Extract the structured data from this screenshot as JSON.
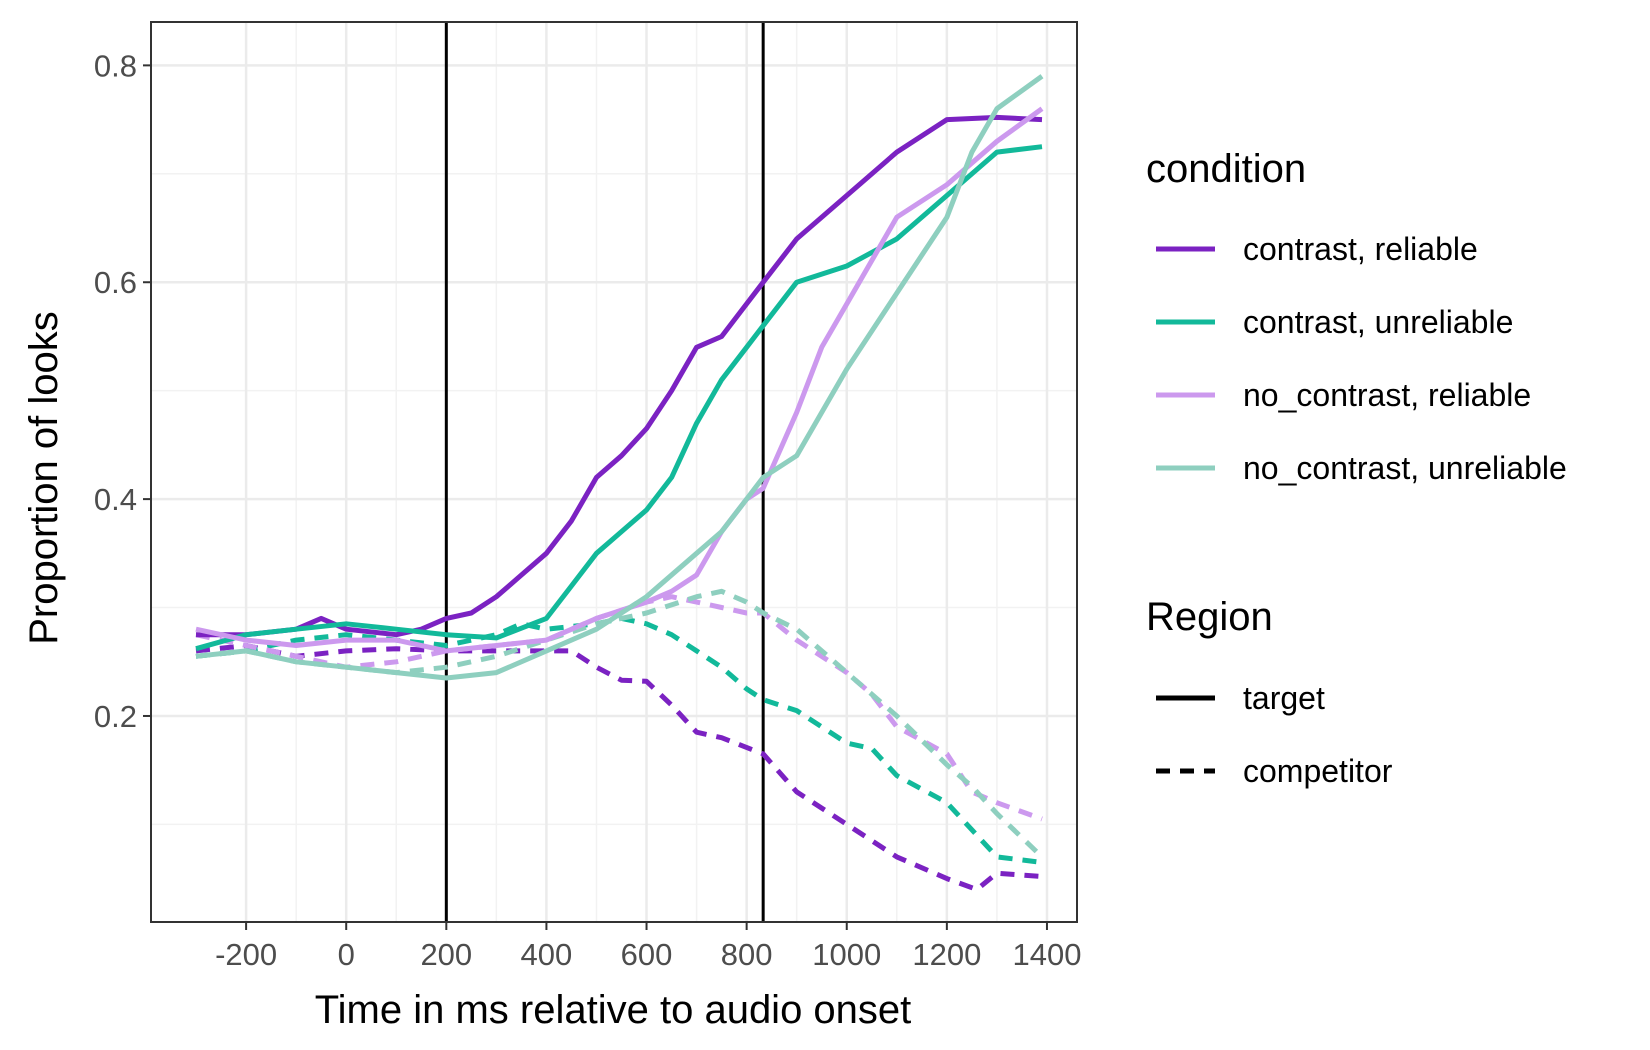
{
  "chart_data": {
    "type": "line",
    "title": "",
    "xlabel": "Time in ms relative to audio onset",
    "ylabel": "Proportion of looks",
    "xlim": [
      -390,
      1460
    ],
    "ylim": [
      0.01,
      0.84
    ],
    "x_ticks": [
      -200,
      0,
      200,
      400,
      600,
      800,
      1000,
      1200,
      1400
    ],
    "x_tick_labels": [
      "-200",
      "0",
      "200",
      "400",
      "600",
      "800",
      "1000",
      "1200",
      "1400"
    ],
    "y_ticks": [
      0.2,
      0.4,
      0.6,
      0.8
    ],
    "y_tick_labels": [
      "0.2",
      "0.4",
      "0.6",
      "0.8"
    ],
    "grid": true,
    "vlines": [
      200,
      833
    ],
    "legend_position": "right",
    "legend": {
      "condition": {
        "title": "condition",
        "items": [
          {
            "label": "contrast, reliable",
            "color": "#7B22C2"
          },
          {
            "label": "contrast, unreliable",
            "color": "#12B99A"
          },
          {
            "label": "no_contrast, reliable",
            "color": "#CC99EE"
          },
          {
            "label": "no_contrast, unreliable",
            "color": "#8ECFBF"
          }
        ]
      },
      "region": {
        "title": "Region",
        "items": [
          {
            "label": "target",
            "style": "solid"
          },
          {
            "label": "competitor",
            "style": "dashed"
          }
        ]
      }
    },
    "series": [
      {
        "name": "contrast, reliable",
        "region": "target",
        "color": "#7B22C2",
        "points": [
          [
            -300,
            0.275
          ],
          [
            -200,
            0.275
          ],
          [
            -100,
            0.28
          ],
          [
            -50,
            0.29
          ],
          [
            0,
            0.28
          ],
          [
            100,
            0.275
          ],
          [
            150,
            0.28
          ],
          [
            200,
            0.29
          ],
          [
            250,
            0.295
          ],
          [
            300,
            0.31
          ],
          [
            350,
            0.33
          ],
          [
            400,
            0.35
          ],
          [
            450,
            0.38
          ],
          [
            500,
            0.42
          ],
          [
            550,
            0.44
          ],
          [
            600,
            0.465
          ],
          [
            650,
            0.5
          ],
          [
            700,
            0.54
          ],
          [
            750,
            0.55
          ],
          [
            800,
            0.58
          ],
          [
            833,
            0.6
          ],
          [
            900,
            0.64
          ],
          [
            1000,
            0.68
          ],
          [
            1100,
            0.72
          ],
          [
            1200,
            0.75
          ],
          [
            1300,
            0.752
          ],
          [
            1390,
            0.75
          ]
        ]
      },
      {
        "name": "contrast, unreliable",
        "region": "target",
        "color": "#12B99A",
        "points": [
          [
            -300,
            0.262
          ],
          [
            -200,
            0.275
          ],
          [
            -100,
            0.28
          ],
          [
            0,
            0.285
          ],
          [
            100,
            0.28
          ],
          [
            200,
            0.275
          ],
          [
            300,
            0.272
          ],
          [
            400,
            0.29
          ],
          [
            450,
            0.32
          ],
          [
            500,
            0.35
          ],
          [
            550,
            0.37
          ],
          [
            600,
            0.39
          ],
          [
            650,
            0.42
          ],
          [
            700,
            0.47
          ],
          [
            750,
            0.51
          ],
          [
            800,
            0.54
          ],
          [
            833,
            0.56
          ],
          [
            900,
            0.6
          ],
          [
            1000,
            0.615
          ],
          [
            1100,
            0.64
          ],
          [
            1200,
            0.68
          ],
          [
            1300,
            0.72
          ],
          [
            1390,
            0.725
          ]
        ]
      },
      {
        "name": "no_contrast, reliable",
        "region": "target",
        "color": "#CC99EE",
        "points": [
          [
            -300,
            0.28
          ],
          [
            -200,
            0.27
          ],
          [
            -100,
            0.265
          ],
          [
            0,
            0.27
          ],
          [
            100,
            0.27
          ],
          [
            200,
            0.26
          ],
          [
            300,
            0.265
          ],
          [
            400,
            0.27
          ],
          [
            500,
            0.29
          ],
          [
            600,
            0.305
          ],
          [
            650,
            0.315
          ],
          [
            700,
            0.33
          ],
          [
            750,
            0.37
          ],
          [
            800,
            0.4
          ],
          [
            833,
            0.41
          ],
          [
            900,
            0.48
          ],
          [
            950,
            0.54
          ],
          [
            1000,
            0.58
          ],
          [
            1100,
            0.66
          ],
          [
            1200,
            0.69
          ],
          [
            1300,
            0.73
          ],
          [
            1390,
            0.76
          ]
        ]
      },
      {
        "name": "no_contrast, unreliable",
        "region": "target",
        "color": "#8ECFBF",
        "points": [
          [
            -300,
            0.255
          ],
          [
            -200,
            0.26
          ],
          [
            -100,
            0.25
          ],
          [
            0,
            0.245
          ],
          [
            100,
            0.24
          ],
          [
            200,
            0.235
          ],
          [
            300,
            0.24
          ],
          [
            400,
            0.26
          ],
          [
            500,
            0.28
          ],
          [
            600,
            0.31
          ],
          [
            700,
            0.35
          ],
          [
            750,
            0.37
          ],
          [
            800,
            0.4
          ],
          [
            833,
            0.42
          ],
          [
            900,
            0.44
          ],
          [
            1000,
            0.52
          ],
          [
            1100,
            0.59
          ],
          [
            1200,
            0.66
          ],
          [
            1250,
            0.72
          ],
          [
            1300,
            0.76
          ],
          [
            1390,
            0.79
          ]
        ]
      },
      {
        "name": "contrast, reliable",
        "region": "competitor",
        "color": "#7B22C2",
        "points": [
          [
            -300,
            0.26
          ],
          [
            -200,
            0.265
          ],
          [
            -100,
            0.255
          ],
          [
            0,
            0.26
          ],
          [
            100,
            0.262
          ],
          [
            200,
            0.26
          ],
          [
            300,
            0.26
          ],
          [
            400,
            0.26
          ],
          [
            450,
            0.26
          ],
          [
            500,
            0.245
          ],
          [
            550,
            0.233
          ],
          [
            600,
            0.232
          ],
          [
            650,
            0.21
          ],
          [
            700,
            0.185
          ],
          [
            750,
            0.18
          ],
          [
            833,
            0.165
          ],
          [
            900,
            0.13
          ],
          [
            1000,
            0.1
          ],
          [
            1100,
            0.07
          ],
          [
            1200,
            0.05
          ],
          [
            1260,
            0.04
          ],
          [
            1300,
            0.055
          ],
          [
            1390,
            0.052
          ]
        ]
      },
      {
        "name": "contrast, unreliable",
        "region": "competitor",
        "color": "#12B99A",
        "points": [
          [
            -300,
            0.255
          ],
          [
            -200,
            0.26
          ],
          [
            -100,
            0.27
          ],
          [
            0,
            0.275
          ],
          [
            100,
            0.27
          ],
          [
            200,
            0.265
          ],
          [
            300,
            0.275
          ],
          [
            350,
            0.285
          ],
          [
            400,
            0.28
          ],
          [
            500,
            0.285
          ],
          [
            550,
            0.29
          ],
          [
            600,
            0.285
          ],
          [
            650,
            0.275
          ],
          [
            700,
            0.26
          ],
          [
            750,
            0.245
          ],
          [
            800,
            0.225
          ],
          [
            833,
            0.215
          ],
          [
            900,
            0.205
          ],
          [
            1000,
            0.175
          ],
          [
            1050,
            0.17
          ],
          [
            1100,
            0.145
          ],
          [
            1200,
            0.12
          ],
          [
            1250,
            0.095
          ],
          [
            1300,
            0.07
          ],
          [
            1390,
            0.065
          ]
        ]
      },
      {
        "name": "no_contrast, reliable",
        "region": "competitor",
        "color": "#CC99EE",
        "points": [
          [
            -300,
            0.275
          ],
          [
            -200,
            0.265
          ],
          [
            -100,
            0.255
          ],
          [
            0,
            0.245
          ],
          [
            100,
            0.25
          ],
          [
            200,
            0.26
          ],
          [
            300,
            0.265
          ],
          [
            400,
            0.27
          ],
          [
            500,
            0.29
          ],
          [
            600,
            0.305
          ],
          [
            650,
            0.31
          ],
          [
            700,
            0.305
          ],
          [
            750,
            0.3
          ],
          [
            800,
            0.295
          ],
          [
            833,
            0.295
          ],
          [
            900,
            0.27
          ],
          [
            1000,
            0.24
          ],
          [
            1050,
            0.22
          ],
          [
            1100,
            0.19
          ],
          [
            1200,
            0.165
          ],
          [
            1250,
            0.13
          ],
          [
            1300,
            0.12
          ],
          [
            1390,
            0.105
          ]
        ]
      },
      {
        "name": "no_contrast, unreliable",
        "region": "competitor",
        "color": "#8ECFBF",
        "points": [
          [
            -300,
            0.255
          ],
          [
            -200,
            0.26
          ],
          [
            -100,
            0.25
          ],
          [
            0,
            0.245
          ],
          [
            100,
            0.24
          ],
          [
            200,
            0.245
          ],
          [
            300,
            0.255
          ],
          [
            400,
            0.27
          ],
          [
            500,
            0.285
          ],
          [
            600,
            0.295
          ],
          [
            700,
            0.31
          ],
          [
            750,
            0.315
          ],
          [
            800,
            0.305
          ],
          [
            833,
            0.295
          ],
          [
            900,
            0.28
          ],
          [
            1000,
            0.24
          ],
          [
            1100,
            0.2
          ],
          [
            1200,
            0.155
          ],
          [
            1250,
            0.135
          ],
          [
            1300,
            0.11
          ],
          [
            1390,
            0.07
          ]
        ]
      }
    ]
  }
}
